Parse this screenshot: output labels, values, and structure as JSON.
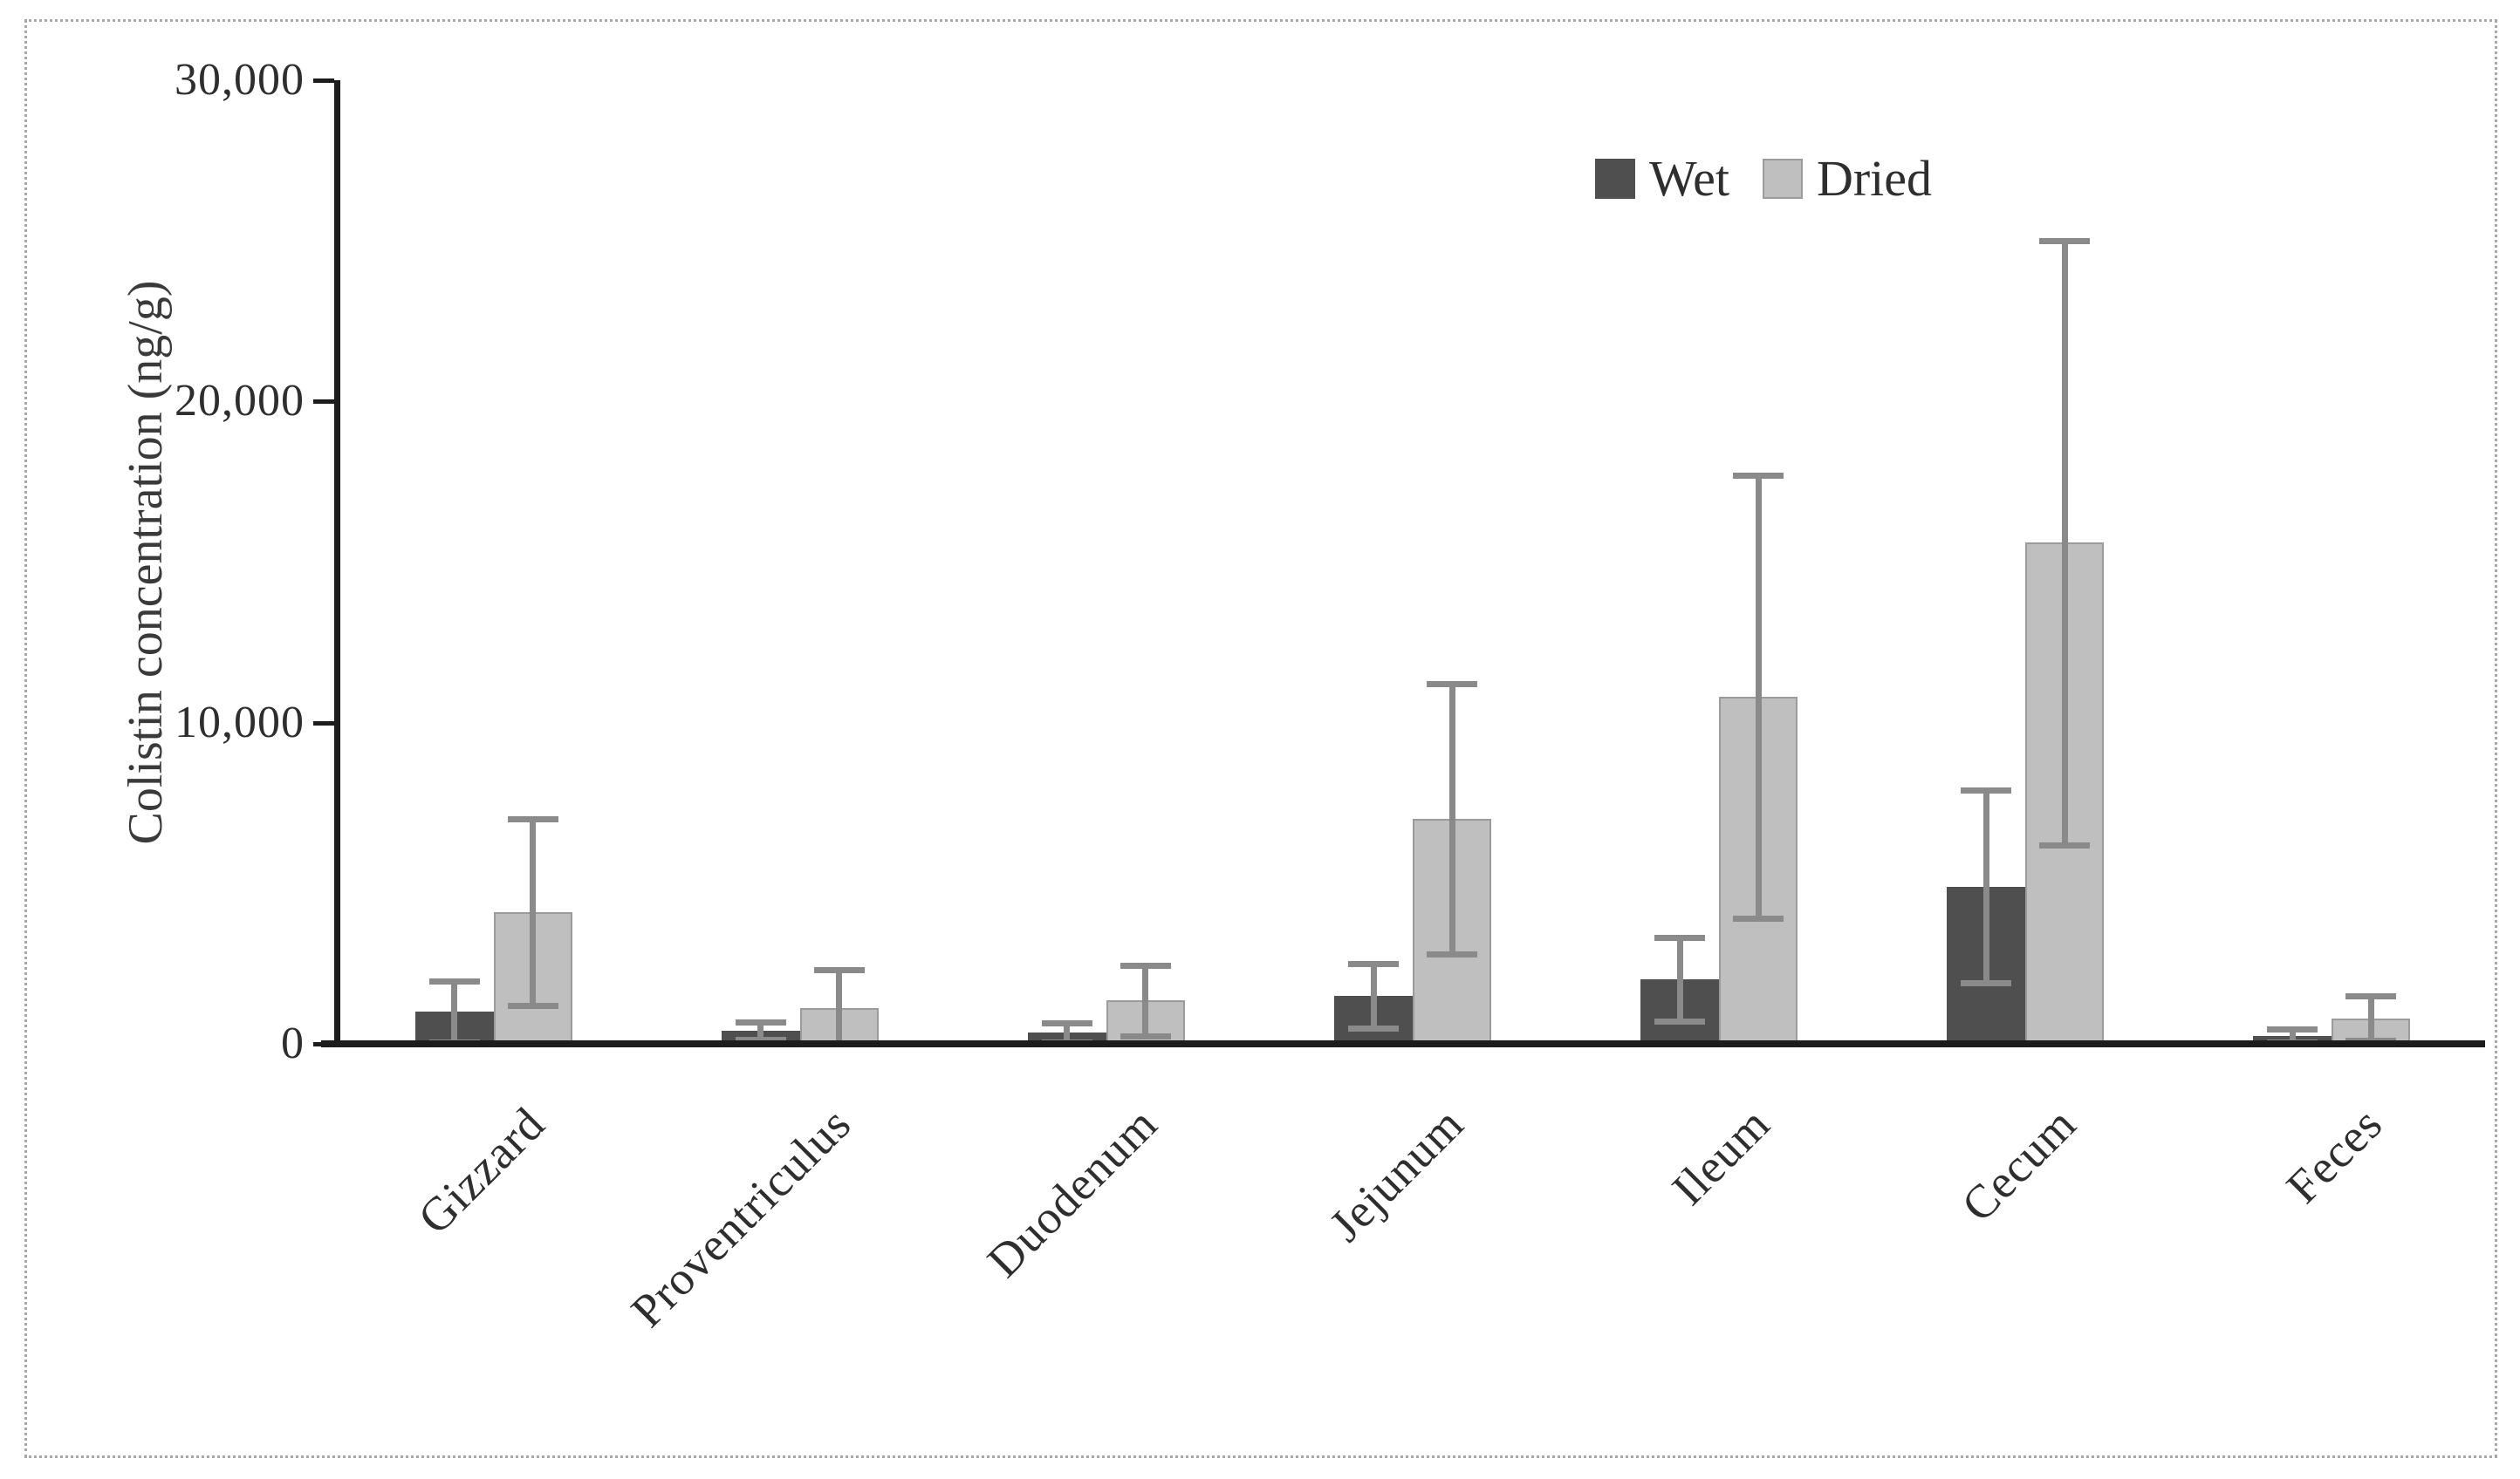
{
  "colors": {
    "axis": "#1c1c1c",
    "text": "#2e2e2e",
    "error_bar": "#8a8a8a",
    "frame_border": "#a8a8a8",
    "background": "#ffffff",
    "wet": "#4f4f4f",
    "dried": "#bfbfbf"
  },
  "chart_data": {
    "type": "bar",
    "title": "",
    "xlabel": "",
    "ylabel": "Colistin concentration (ng/g)",
    "ylim": [
      0,
      30000
    ],
    "grid": false,
    "legend_position": "top-right-inside",
    "yticks": [
      {
        "value": 30000,
        "label": "30,000"
      },
      {
        "value": 20000,
        "label": "20,000"
      },
      {
        "value": 10000,
        "label": "10,000"
      },
      {
        "value": 0,
        "label": "0"
      }
    ],
    "categories": [
      "Gizzard",
      "Proventriculus",
      "Duodenum",
      "Jejunum",
      "Ileum",
      "Cecum",
      "Feces"
    ],
    "series": [
      {
        "name": "Wet",
        "color": "#4f4f4f",
        "values": [
          1000,
          400,
          350,
          1500,
          2000,
          4900,
          250
        ],
        "errors": [
          950,
          270,
          300,
          1000,
          1300,
          3000,
          200
        ]
      },
      {
        "name": "Dried",
        "color": "#bfbfbf",
        "values": [
          4100,
          1100,
          1350,
          7000,
          10800,
          15600,
          800
        ],
        "errors": [
          2900,
          1200,
          1100,
          4200,
          6900,
          9400,
          700
        ]
      }
    ]
  }
}
